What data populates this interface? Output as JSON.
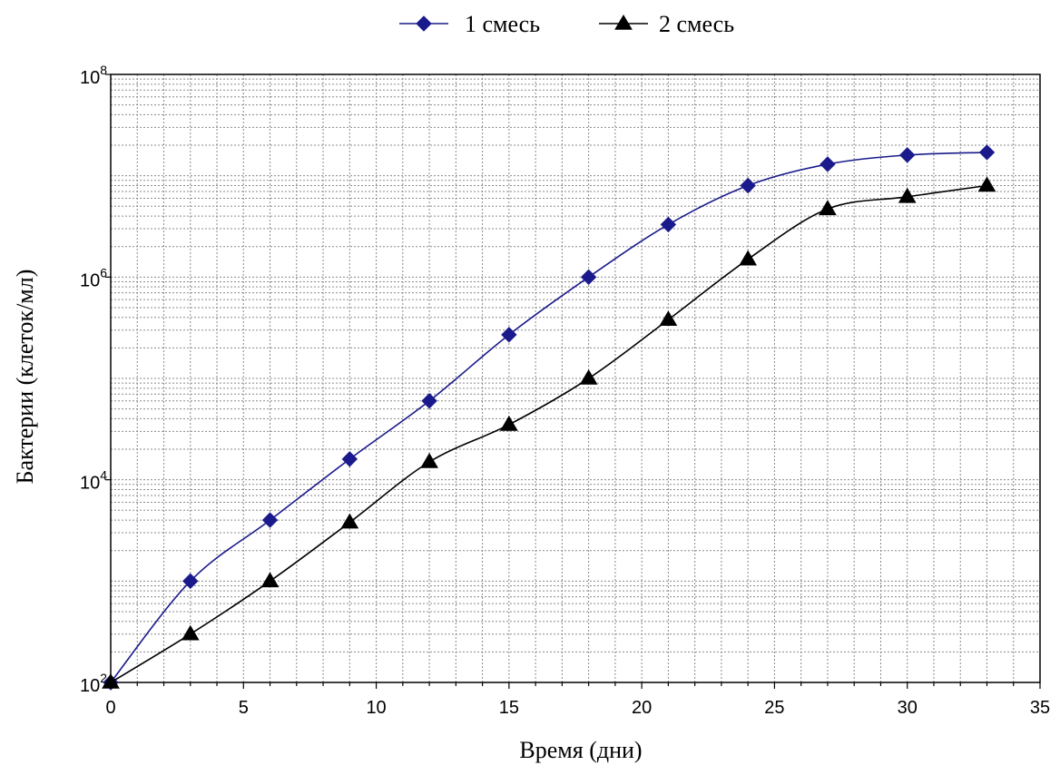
{
  "chart_data": {
    "type": "line",
    "title": "",
    "xlabel": "Время (дни)",
    "ylabel": "Бактерии (клеток/мл)",
    "xlim": [
      0,
      35
    ],
    "ylim": [
      100,
      100000000
    ],
    "yscale": "log",
    "grid": true,
    "legend_position": "top-center",
    "x_ticks": [
      0,
      5,
      10,
      15,
      20,
      25,
      30,
      35
    ],
    "x_tick_labels": [
      "0",
      "5",
      "10",
      "15",
      "20",
      "25",
      "30",
      "35"
    ],
    "y_ticks": [
      100,
      10000,
      1000000,
      100000000
    ],
    "y_tick_labels": [
      {
        "base": "10",
        "exp": "2"
      },
      {
        "base": "10",
        "exp": "4"
      },
      {
        "base": "10",
        "exp": "6"
      },
      {
        "base": "10",
        "exp": "8"
      }
    ],
    "series": [
      {
        "name": "1 смесь",
        "color": "#1a1a8c",
        "marker": "diamond",
        "x": [
          0,
          3,
          6,
          9,
          12,
          15,
          18,
          21,
          24,
          27,
          30,
          33
        ],
        "y": [
          100,
          1000,
          4000,
          16000,
          60000,
          270000,
          1000000,
          3300000,
          8000000,
          13000000,
          16000000,
          17000000
        ]
      },
      {
        "name": "2 смесь",
        "color": "#000000",
        "marker": "triangle",
        "x": [
          0,
          3,
          6,
          9,
          12,
          15,
          18,
          21,
          24,
          27,
          30,
          33
        ],
        "y": [
          100,
          300,
          1000,
          3800,
          15000,
          35000,
          100000,
          380000,
          1500000,
          4700000,
          6200000,
          8000000
        ]
      }
    ]
  }
}
